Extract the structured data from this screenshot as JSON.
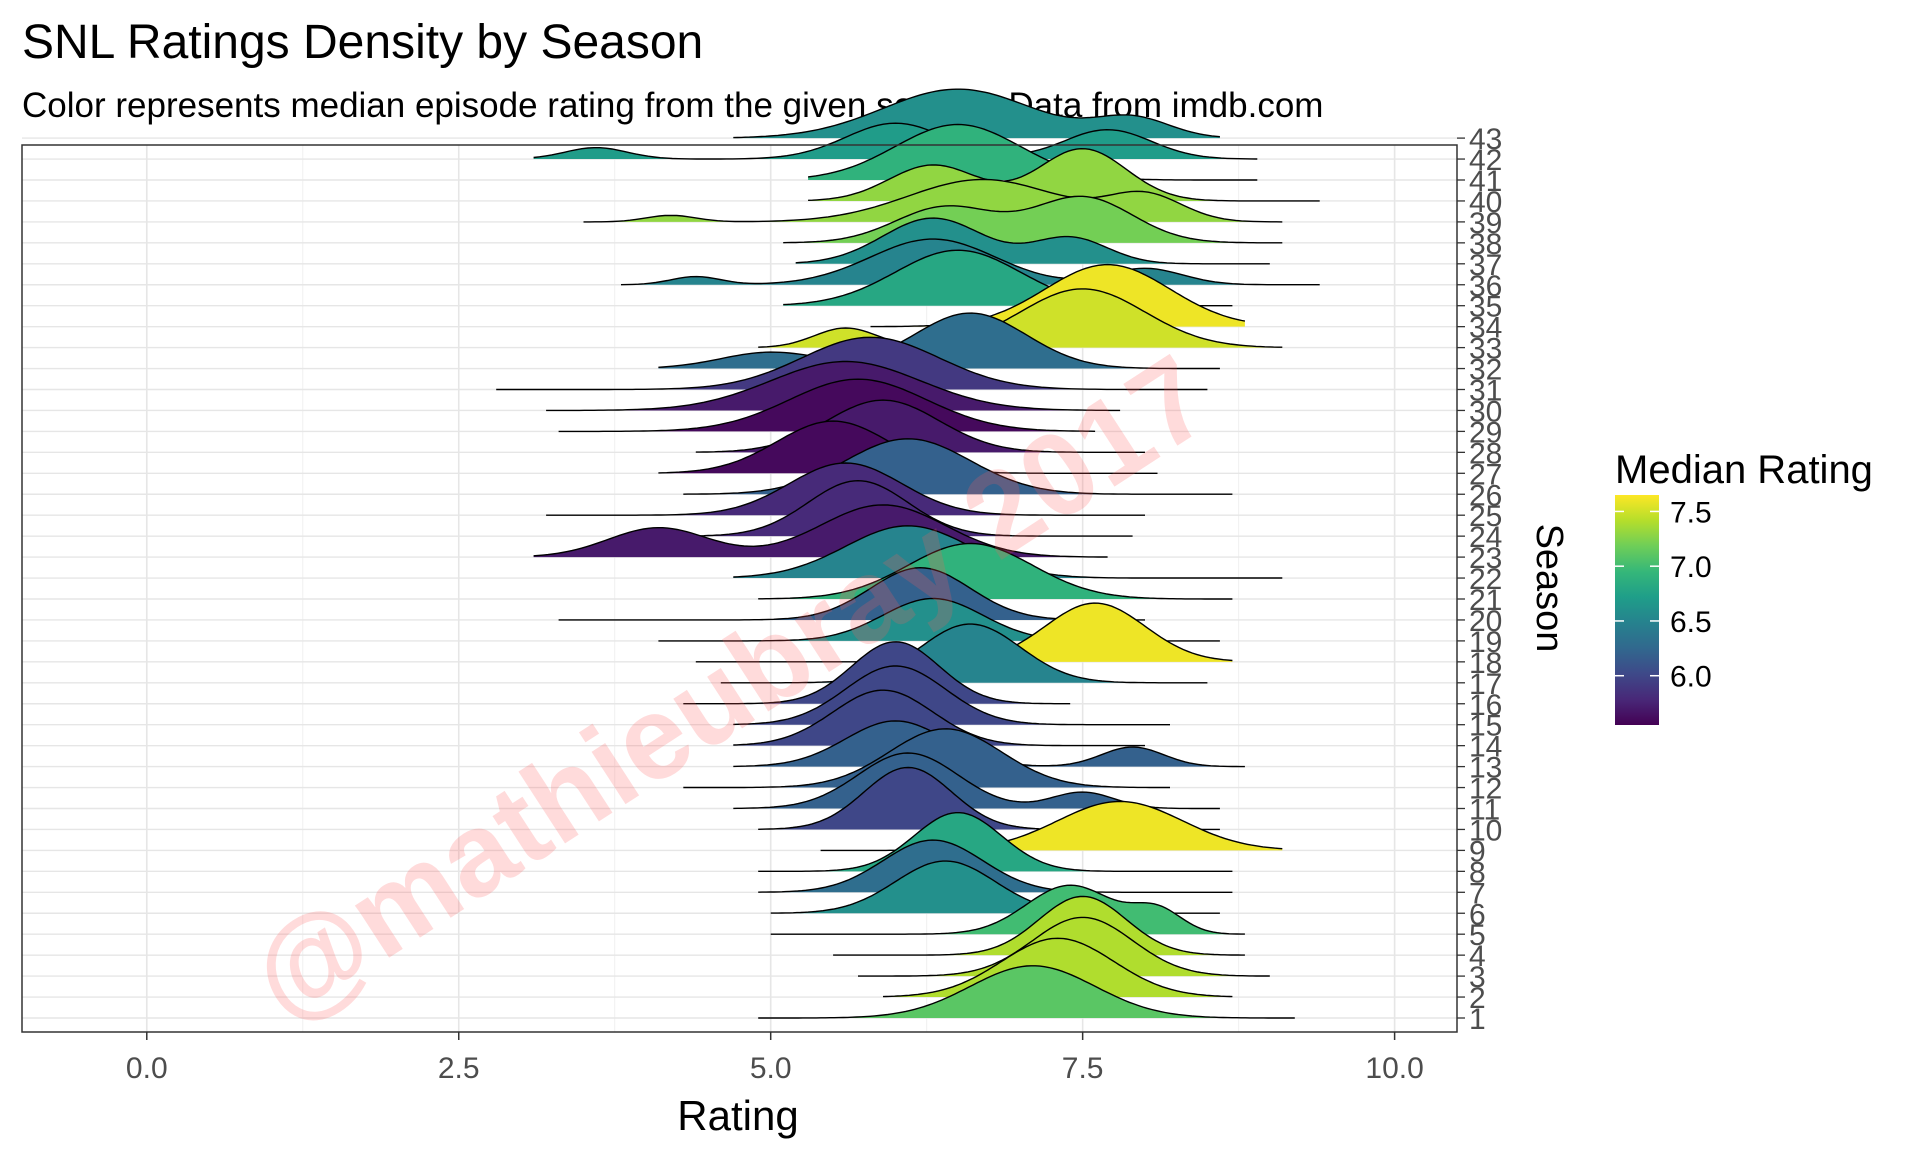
{
  "chart_data": {
    "type": "ridgeline",
    "title": "SNL Ratings Density by Season",
    "subtitle": "Color represents median episode rating from the given season. Data from imdb.com",
    "xlabel": "Rating",
    "ylabel": "Season",
    "xlim": [
      -1.0,
      10.5
    ],
    "x_ticks": [
      "0.0",
      "2.5",
      "5.0",
      "7.5",
      "10.0"
    ],
    "grid": true,
    "legend": {
      "title": "Median Rating",
      "position": "right",
      "range": [
        5.55,
        7.65
      ],
      "ticks": [
        "6.0",
        "6.5",
        "7.0",
        "7.5"
      ],
      "palette": [
        "#440154",
        "#482878",
        "#3e4989",
        "#31688e",
        "#26828e",
        "#1f9e89",
        "#35b779",
        "#6ece58",
        "#b5de2b",
        "#fde725"
      ]
    },
    "seasons": [
      {
        "season": "1",
        "median": 7.1,
        "min": 4.9,
        "max": 9.2,
        "peaks": [
          [
            7.1,
            0.5,
            1.6
          ]
        ]
      },
      {
        "season": "2",
        "median": 7.4,
        "min": 5.9,
        "max": 8.7,
        "peaks": [
          [
            7.3,
            0.45,
            1.8
          ]
        ]
      },
      {
        "season": "3",
        "median": 7.4,
        "min": 5.7,
        "max": 9.0,
        "peaks": [
          [
            7.5,
            0.4,
            1.8
          ]
        ]
      },
      {
        "season": "4",
        "median": 7.4,
        "min": 5.5,
        "max": 8.8,
        "peaks": [
          [
            7.5,
            0.35,
            1.8
          ]
        ]
      },
      {
        "season": "5",
        "median": 7.0,
        "min": 5.0,
        "max": 8.8,
        "peaks": [
          [
            7.4,
            0.35,
            1.5
          ],
          [
            8.1,
            0.2,
            0.7
          ]
        ]
      },
      {
        "season": "6",
        "median": 6.6,
        "min": 5.0,
        "max": 8.6,
        "peaks": [
          [
            6.4,
            0.4,
            1.6
          ]
        ]
      },
      {
        "season": "7",
        "median": 6.3,
        "min": 4.9,
        "max": 8.7,
        "peaks": [
          [
            6.3,
            0.4,
            1.6
          ]
        ]
      },
      {
        "season": "8",
        "median": 6.8,
        "min": 4.9,
        "max": 8.7,
        "peaks": [
          [
            6.5,
            0.35,
            1.8
          ]
        ]
      },
      {
        "season": "9",
        "median": 7.6,
        "min": 5.4,
        "max": 9.1,
        "peaks": [
          [
            7.8,
            0.5,
            1.5
          ]
        ]
      },
      {
        "season": "10",
        "median": 6.0,
        "min": 4.9,
        "max": 8.6,
        "peaks": [
          [
            6.1,
            0.35,
            1.9
          ]
        ]
      },
      {
        "season": "11",
        "median": 6.2,
        "min": 4.7,
        "max": 8.6,
        "peaks": [
          [
            6.1,
            0.4,
            1.7
          ],
          [
            7.5,
            0.25,
            0.5
          ]
        ]
      },
      {
        "season": "12",
        "median": 6.2,
        "min": 4.3,
        "max": 8.2,
        "peaks": [
          [
            6.4,
            0.45,
            1.8
          ]
        ]
      },
      {
        "season": "13",
        "median": 6.2,
        "min": 4.7,
        "max": 8.8,
        "peaks": [
          [
            6.0,
            0.4,
            1.4
          ],
          [
            7.9,
            0.25,
            0.6
          ]
        ]
      },
      {
        "season": "14",
        "median": 6.0,
        "min": 4.7,
        "max": 8.0,
        "peaks": [
          [
            5.9,
            0.4,
            1.7
          ]
        ]
      },
      {
        "season": "15",
        "median": 6.0,
        "min": 4.7,
        "max": 8.2,
        "peaks": [
          [
            6.0,
            0.4,
            1.8
          ]
        ]
      },
      {
        "season": "16",
        "median": 6.0,
        "min": 4.3,
        "max": 7.4,
        "peaks": [
          [
            6.0,
            0.35,
            1.9
          ]
        ]
      },
      {
        "season": "17",
        "median": 6.5,
        "min": 4.6,
        "max": 8.5,
        "peaks": [
          [
            6.6,
            0.4,
            1.8
          ]
        ]
      },
      {
        "season": "18",
        "median": 7.6,
        "min": 4.4,
        "max": 8.7,
        "peaks": [
          [
            7.6,
            0.4,
            1.8
          ]
        ]
      },
      {
        "season": "19",
        "median": 6.6,
        "min": 4.1,
        "max": 8.6,
        "peaks": [
          [
            6.3,
            0.4,
            1.3
          ]
        ]
      },
      {
        "season": "20",
        "median": 6.2,
        "min": 3.3,
        "max": 8.0,
        "peaks": [
          [
            6.2,
            0.4,
            1.6
          ]
        ]
      },
      {
        "season": "21",
        "median": 6.9,
        "min": 4.9,
        "max": 8.7,
        "peaks": [
          [
            6.6,
            0.5,
            1.7
          ]
        ]
      },
      {
        "season": "22",
        "median": 6.5,
        "min": 4.7,
        "max": 9.1,
        "peaks": [
          [
            6.1,
            0.5,
            1.6
          ]
        ]
      },
      {
        "season": "23",
        "median": 5.7,
        "min": 3.1,
        "max": 7.7,
        "peaks": [
          [
            4.1,
            0.4,
            0.9
          ],
          [
            5.9,
            0.5,
            1.6
          ]
        ]
      },
      {
        "season": "24",
        "median": 5.8,
        "min": 3.9,
        "max": 7.9,
        "peaks": [
          [
            5.7,
            0.4,
            1.7
          ]
        ]
      },
      {
        "season": "25",
        "median": 5.8,
        "min": 3.2,
        "max": 8.0,
        "peaks": [
          [
            5.6,
            0.45,
            1.6
          ]
        ]
      },
      {
        "season": "26",
        "median": 6.2,
        "min": 4.3,
        "max": 8.7,
        "peaks": [
          [
            6.1,
            0.5,
            1.7
          ]
        ]
      },
      {
        "season": "27",
        "median": 5.6,
        "min": 4.1,
        "max": 8.1,
        "peaks": [
          [
            5.5,
            0.45,
            1.6
          ]
        ]
      },
      {
        "season": "28",
        "median": 5.7,
        "min": 4.4,
        "max": 8.0,
        "peaks": [
          [
            5.9,
            0.45,
            1.6
          ]
        ]
      },
      {
        "season": "29",
        "median": 5.6,
        "min": 3.3,
        "max": 7.6,
        "peaks": [
          [
            5.7,
            0.55,
            1.6
          ]
        ]
      },
      {
        "season": "30",
        "median": 5.7,
        "min": 3.2,
        "max": 7.8,
        "peaks": [
          [
            5.6,
            0.6,
            1.5
          ]
        ]
      },
      {
        "season": "31",
        "median": 5.9,
        "min": 2.8,
        "max": 8.5,
        "peaks": [
          [
            5.8,
            0.55,
            1.6
          ]
        ]
      },
      {
        "season": "32",
        "median": 6.3,
        "min": 4.1,
        "max": 8.6,
        "peaks": [
          [
            5.0,
            0.4,
            0.5
          ],
          [
            6.6,
            0.45,
            1.7
          ]
        ]
      },
      {
        "season": "33",
        "median": 7.5,
        "min": 4.9,
        "max": 9.1,
        "peaks": [
          [
            5.6,
            0.25,
            0.6
          ],
          [
            7.5,
            0.5,
            1.8
          ]
        ]
      },
      {
        "season": "34",
        "median": 7.6,
        "min": 5.8,
        "max": 8.8,
        "peaks": [
          [
            7.7,
            0.5,
            1.9
          ]
        ]
      },
      {
        "season": "35",
        "median": 6.8,
        "min": 5.1,
        "max": 8.7,
        "peaks": [
          [
            6.5,
            0.5,
            1.7
          ]
        ]
      },
      {
        "season": "36",
        "median": 6.5,
        "min": 3.8,
        "max": 9.4,
        "peaks": [
          [
            4.4,
            0.2,
            0.25
          ],
          [
            6.3,
            0.5,
            1.4
          ],
          [
            8.0,
            0.3,
            0.5
          ]
        ]
      },
      {
        "season": "37",
        "median": 6.6,
        "min": 5.2,
        "max": 9.0,
        "peaks": [
          [
            6.3,
            0.4,
            1.4
          ],
          [
            7.4,
            0.3,
            0.8
          ]
        ]
      },
      {
        "season": "38",
        "median": 7.2,
        "min": 5.1,
        "max": 9.1,
        "peaks": [
          [
            6.4,
            0.4,
            1.1
          ],
          [
            7.5,
            0.4,
            1.4
          ]
        ]
      },
      {
        "season": "39",
        "median": 7.3,
        "min": 3.5,
        "max": 9.1,
        "peaks": [
          [
            4.2,
            0.2,
            0.2
          ],
          [
            6.7,
            0.6,
            1.3
          ],
          [
            8.0,
            0.3,
            0.8
          ]
        ]
      },
      {
        "season": "40",
        "median": 7.3,
        "min": 5.3,
        "max": 9.4,
        "peaks": [
          [
            6.3,
            0.35,
            1.1
          ],
          [
            7.5,
            0.35,
            1.6
          ]
        ]
      },
      {
        "season": "41",
        "median": 6.9,
        "min": 5.3,
        "max": 8.9,
        "peaks": [
          [
            6.5,
            0.5,
            1.7
          ]
        ]
      },
      {
        "season": "42",
        "median": 6.7,
        "min": 3.1,
        "max": 8.9,
        "peaks": [
          [
            3.6,
            0.25,
            0.35
          ],
          [
            6.0,
            0.4,
            1.1
          ],
          [
            7.7,
            0.35,
            0.9
          ]
        ]
      },
      {
        "season": "43",
        "median": 6.6,
        "min": 4.7,
        "max": 8.6,
        "peaks": [
          [
            6.5,
            0.6,
            1.5
          ],
          [
            7.9,
            0.3,
            0.6
          ]
        ]
      }
    ]
  },
  "watermark": {
    "text": "@mathieubray 2017"
  }
}
